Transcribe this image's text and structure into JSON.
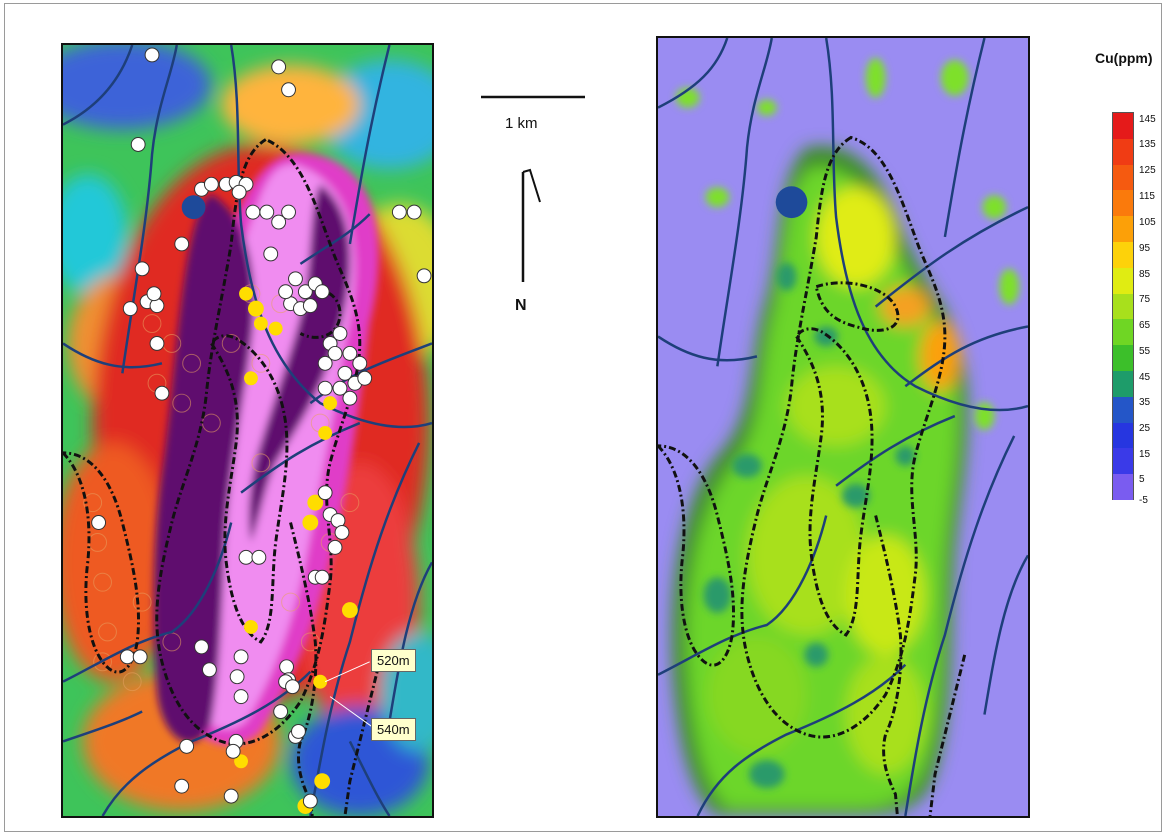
{
  "scale_bar": {
    "label": "1 km"
  },
  "north_arrow": {
    "label": "N"
  },
  "legend": {
    "title": "Cu(ppm)",
    "ticks": [
      "145",
      "135",
      "125",
      "115",
      "105",
      "95",
      "85",
      "75",
      "65",
      "55",
      "45",
      "35",
      "25",
      "15",
      "5",
      "-5"
    ],
    "colors": [
      "#e51a1a",
      "#f03c14",
      "#f55a10",
      "#fa7a0c",
      "#fca008",
      "#fdd20a",
      "#e0ec12",
      "#a8e01c",
      "#6fd624",
      "#3cbf2a",
      "#1e9c6a",
      "#2456c8",
      "#2636e0",
      "#3a3ae8",
      "#7a5cf0",
      "#a07ef5"
    ]
  },
  "callouts": [
    {
      "label": "520m"
    },
    {
      "label": "540m"
    }
  ],
  "colors": {
    "fault_line": "#1e3f7a",
    "contour": "#111111",
    "intrusion_dark": "#5e0f6e",
    "intrusion_light": "#f08cf0",
    "background_right": "#9a8cf2",
    "sample_yellow": "#ffdd00"
  }
}
